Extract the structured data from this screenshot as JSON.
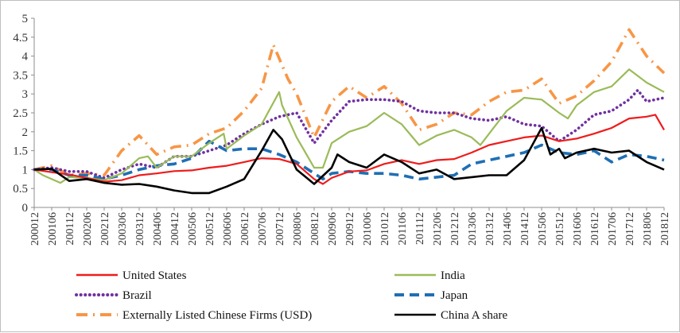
{
  "chart_data": {
    "type": "line",
    "title": "",
    "xlabel": "",
    "ylabel": "",
    "ylim": [
      0,
      5
    ],
    "yticks": [
      "0",
      "0.5",
      "1",
      "1.5",
      "2",
      "2.5",
      "3",
      "3.5",
      "4",
      "4.5",
      "5"
    ],
    "grid": false,
    "legend_position": "bottom",
    "x_start": "2000-12",
    "x_end": "2018-12",
    "x_tick_labels": [
      "200012",
      "200106",
      "200112",
      "200206",
      "200212",
      "200306",
      "200312",
      "200406",
      "200412",
      "200506",
      "200512",
      "200606",
      "200612",
      "200706",
      "200712",
      "200806",
      "200812",
      "200906",
      "200912",
      "201006",
      "201012",
      "201106",
      "201112",
      "201206",
      "201212",
      "201306",
      "201312",
      "201406",
      "201412",
      "201506",
      "201512",
      "201606",
      "201612",
      "201706",
      "201712",
      "201806",
      "201812"
    ],
    "series": [
      {
        "name": "United States",
        "color": "#ee1c1c",
        "dash": "solid",
        "points": [
          [
            "2000-12",
            1.0
          ],
          [
            "2001-06",
            0.93
          ],
          [
            "2001-12",
            0.87
          ],
          [
            "2002-06",
            0.78
          ],
          [
            "2002-12",
            0.68
          ],
          [
            "2003-06",
            0.72
          ],
          [
            "2003-12",
            0.85
          ],
          [
            "2004-06",
            0.9
          ],
          [
            "2004-12",
            0.96
          ],
          [
            "2005-06",
            0.98
          ],
          [
            "2005-12",
            1.05
          ],
          [
            "2006-06",
            1.1
          ],
          [
            "2006-12",
            1.2
          ],
          [
            "2007-06",
            1.3
          ],
          [
            "2007-12",
            1.28
          ],
          [
            "2008-06",
            1.15
          ],
          [
            "2008-12",
            0.75
          ],
          [
            "2009-03",
            0.62
          ],
          [
            "2009-06",
            0.78
          ],
          [
            "2009-12",
            0.95
          ],
          [
            "2010-06",
            0.98
          ],
          [
            "2010-12",
            1.15
          ],
          [
            "2011-06",
            1.25
          ],
          [
            "2011-12",
            1.15
          ],
          [
            "2012-06",
            1.25
          ],
          [
            "2012-12",
            1.28
          ],
          [
            "2013-06",
            1.45
          ],
          [
            "2013-12",
            1.65
          ],
          [
            "2014-06",
            1.75
          ],
          [
            "2014-12",
            1.85
          ],
          [
            "2015-06",
            1.9
          ],
          [
            "2015-12",
            1.75
          ],
          [
            "2016-06",
            1.82
          ],
          [
            "2016-12",
            1.95
          ],
          [
            "2017-06",
            2.1
          ],
          [
            "2017-12",
            2.35
          ],
          [
            "2018-06",
            2.4
          ],
          [
            "2018-09",
            2.45
          ],
          [
            "2018-12",
            2.05
          ]
        ]
      },
      {
        "name": "India",
        "color": "#9bbb59",
        "dash": "solid",
        "points": [
          [
            "2000-12",
            1.0
          ],
          [
            "2001-03",
            0.85
          ],
          [
            "2001-09",
            0.65
          ],
          [
            "2001-12",
            0.8
          ],
          [
            "2002-06",
            0.78
          ],
          [
            "2002-12",
            0.72
          ],
          [
            "2003-06",
            0.9
          ],
          [
            "2003-12",
            1.3
          ],
          [
            "2004-03",
            1.35
          ],
          [
            "2004-06",
            1.05
          ],
          [
            "2004-12",
            1.35
          ],
          [
            "2005-06",
            1.35
          ],
          [
            "2005-12",
            1.7
          ],
          [
            "2006-05",
            1.95
          ],
          [
            "2006-06",
            1.55
          ],
          [
            "2006-12",
            1.9
          ],
          [
            "2007-06",
            2.2
          ],
          [
            "2007-12",
            3.05
          ],
          [
            "2008-01",
            2.7
          ],
          [
            "2008-06",
            1.85
          ],
          [
            "2008-12",
            1.05
          ],
          [
            "2009-03",
            1.05
          ],
          [
            "2009-06",
            1.7
          ],
          [
            "2009-12",
            2.0
          ],
          [
            "2010-06",
            2.15
          ],
          [
            "2010-12",
            2.5
          ],
          [
            "2011-06",
            2.2
          ],
          [
            "2011-12",
            1.65
          ],
          [
            "2012-06",
            1.9
          ],
          [
            "2012-12",
            2.05
          ],
          [
            "2013-06",
            1.85
          ],
          [
            "2013-09",
            1.65
          ],
          [
            "2013-12",
            1.95
          ],
          [
            "2014-06",
            2.55
          ],
          [
            "2014-12",
            2.9
          ],
          [
            "2015-06",
            2.85
          ],
          [
            "2015-12",
            2.5
          ],
          [
            "2016-03",
            2.35
          ],
          [
            "2016-06",
            2.7
          ],
          [
            "2016-12",
            3.05
          ],
          [
            "2017-06",
            3.2
          ],
          [
            "2017-12",
            3.65
          ],
          [
            "2018-06",
            3.3
          ],
          [
            "2018-12",
            3.05
          ]
        ]
      },
      {
        "name": "Brazil",
        "color": "#7030a0",
        "dash": "dotted",
        "points": [
          [
            "2000-12",
            1.0
          ],
          [
            "2001-06",
            1.05
          ],
          [
            "2001-12",
            0.95
          ],
          [
            "2002-06",
            0.95
          ],
          [
            "2002-12",
            0.78
          ],
          [
            "2003-06",
            1.0
          ],
          [
            "2003-12",
            1.15
          ],
          [
            "2004-06",
            1.05
          ],
          [
            "2004-12",
            1.35
          ],
          [
            "2005-06",
            1.35
          ],
          [
            "2005-12",
            1.5
          ],
          [
            "2006-06",
            1.65
          ],
          [
            "2006-12",
            1.95
          ],
          [
            "2007-06",
            2.2
          ],
          [
            "2007-12",
            2.4
          ],
          [
            "2008-06",
            2.5
          ],
          [
            "2008-12",
            1.7
          ],
          [
            "2009-06",
            2.3
          ],
          [
            "2009-12",
            2.8
          ],
          [
            "2010-06",
            2.85
          ],
          [
            "2010-12",
            2.85
          ],
          [
            "2011-06",
            2.8
          ],
          [
            "2011-12",
            2.55
          ],
          [
            "2012-06",
            2.5
          ],
          [
            "2012-12",
            2.5
          ],
          [
            "2013-06",
            2.35
          ],
          [
            "2013-12",
            2.3
          ],
          [
            "2014-06",
            2.4
          ],
          [
            "2014-12",
            2.2
          ],
          [
            "2015-06",
            2.15
          ],
          [
            "2015-12",
            1.75
          ],
          [
            "2016-06",
            2.05
          ],
          [
            "2016-12",
            2.45
          ],
          [
            "2017-06",
            2.55
          ],
          [
            "2017-12",
            2.85
          ],
          [
            "2018-03",
            3.1
          ],
          [
            "2018-06",
            2.8
          ],
          [
            "2018-12",
            2.9
          ]
        ]
      },
      {
        "name": "Japan",
        "color": "#1f6fb4",
        "dash": "dashed",
        "points": [
          [
            "2000-12",
            1.0
          ],
          [
            "2001-06",
            1.0
          ],
          [
            "2001-12",
            0.85
          ],
          [
            "2002-06",
            0.85
          ],
          [
            "2002-12",
            0.75
          ],
          [
            "2003-06",
            0.85
          ],
          [
            "2003-12",
            1.0
          ],
          [
            "2004-06",
            1.1
          ],
          [
            "2004-12",
            1.15
          ],
          [
            "2005-06",
            1.3
          ],
          [
            "2005-12",
            1.75
          ],
          [
            "2006-06",
            1.5
          ],
          [
            "2006-12",
            1.55
          ],
          [
            "2007-06",
            1.55
          ],
          [
            "2007-12",
            1.4
          ],
          [
            "2008-06",
            1.2
          ],
          [
            "2008-12",
            0.9
          ],
          [
            "2009-03",
            0.75
          ],
          [
            "2009-06",
            0.9
          ],
          [
            "2009-12",
            0.95
          ],
          [
            "2010-06",
            0.9
          ],
          [
            "2010-12",
            0.9
          ],
          [
            "2011-06",
            0.85
          ],
          [
            "2011-12",
            0.75
          ],
          [
            "2012-06",
            0.8
          ],
          [
            "2012-12",
            0.85
          ],
          [
            "2013-06",
            1.15
          ],
          [
            "2013-12",
            1.25
          ],
          [
            "2014-06",
            1.35
          ],
          [
            "2014-12",
            1.45
          ],
          [
            "2015-06",
            1.65
          ],
          [
            "2015-12",
            1.45
          ],
          [
            "2016-06",
            1.4
          ],
          [
            "2016-12",
            1.5
          ],
          [
            "2017-06",
            1.2
          ],
          [
            "2017-12",
            1.4
          ],
          [
            "2018-06",
            1.35
          ],
          [
            "2018-12",
            1.25
          ]
        ]
      },
      {
        "name": "Externally Listed Chinese Firms (USD)",
        "color": "#f79646",
        "dash": "dashdot",
        "points": [
          [
            "2000-12",
            1.0
          ],
          [
            "2001-06",
            1.1
          ],
          [
            "2001-12",
            0.85
          ],
          [
            "2002-06",
            0.9
          ],
          [
            "2002-12",
            0.85
          ],
          [
            "2003-06",
            1.5
          ],
          [
            "2003-12",
            1.9
          ],
          [
            "2004-06",
            1.4
          ],
          [
            "2004-12",
            1.6
          ],
          [
            "2005-06",
            1.65
          ],
          [
            "2005-12",
            1.95
          ],
          [
            "2006-06",
            2.1
          ],
          [
            "2006-12",
            2.55
          ],
          [
            "2007-06",
            3.15
          ],
          [
            "2007-10",
            4.3
          ],
          [
            "2008-03",
            3.4
          ],
          [
            "2008-06",
            3.0
          ],
          [
            "2008-12",
            1.85
          ],
          [
            "2009-06",
            2.8
          ],
          [
            "2009-12",
            3.2
          ],
          [
            "2010-06",
            2.9
          ],
          [
            "2010-12",
            3.2
          ],
          [
            "2011-06",
            2.75
          ],
          [
            "2011-12",
            2.05
          ],
          [
            "2012-06",
            2.2
          ],
          [
            "2012-12",
            2.5
          ],
          [
            "2013-06",
            2.45
          ],
          [
            "2013-12",
            2.8
          ],
          [
            "2014-06",
            3.05
          ],
          [
            "2014-12",
            3.1
          ],
          [
            "2015-06",
            3.4
          ],
          [
            "2015-12",
            2.75
          ],
          [
            "2016-06",
            2.95
          ],
          [
            "2016-12",
            3.35
          ],
          [
            "2017-06",
            3.85
          ],
          [
            "2017-12",
            4.7
          ],
          [
            "2018-06",
            4.0
          ],
          [
            "2018-12",
            3.55
          ]
        ]
      },
      {
        "name": "China A share",
        "color": "#000000",
        "dash": "solid",
        "points": [
          [
            "2000-12",
            1.0
          ],
          [
            "2001-06",
            1.02
          ],
          [
            "2001-12",
            0.7
          ],
          [
            "2002-06",
            0.75
          ],
          [
            "2002-12",
            0.65
          ],
          [
            "2003-06",
            0.6
          ],
          [
            "2003-12",
            0.62
          ],
          [
            "2004-06",
            0.55
          ],
          [
            "2004-12",
            0.45
          ],
          [
            "2005-06",
            0.38
          ],
          [
            "2005-12",
            0.38
          ],
          [
            "2006-06",
            0.55
          ],
          [
            "2006-12",
            0.75
          ],
          [
            "2007-06",
            1.5
          ],
          [
            "2007-10",
            2.05
          ],
          [
            "2008-01",
            1.8
          ],
          [
            "2008-06",
            1.0
          ],
          [
            "2008-12",
            0.62
          ],
          [
            "2009-06",
            1.05
          ],
          [
            "2009-08",
            1.4
          ],
          [
            "2009-12",
            1.2
          ],
          [
            "2010-06",
            1.05
          ],
          [
            "2010-12",
            1.4
          ],
          [
            "2011-06",
            1.2
          ],
          [
            "2011-12",
            0.9
          ],
          [
            "2012-06",
            1.0
          ],
          [
            "2012-12",
            0.75
          ],
          [
            "2013-06",
            0.8
          ],
          [
            "2013-12",
            0.85
          ],
          [
            "2014-06",
            0.85
          ],
          [
            "2014-12",
            1.25
          ],
          [
            "2015-06",
            2.1
          ],
          [
            "2015-09",
            1.4
          ],
          [
            "2015-12",
            1.55
          ],
          [
            "2016-02",
            1.3
          ],
          [
            "2016-06",
            1.45
          ],
          [
            "2016-12",
            1.55
          ],
          [
            "2017-06",
            1.45
          ],
          [
            "2017-12",
            1.5
          ],
          [
            "2018-06",
            1.2
          ],
          [
            "2018-12",
            1.0
          ]
        ]
      }
    ]
  }
}
